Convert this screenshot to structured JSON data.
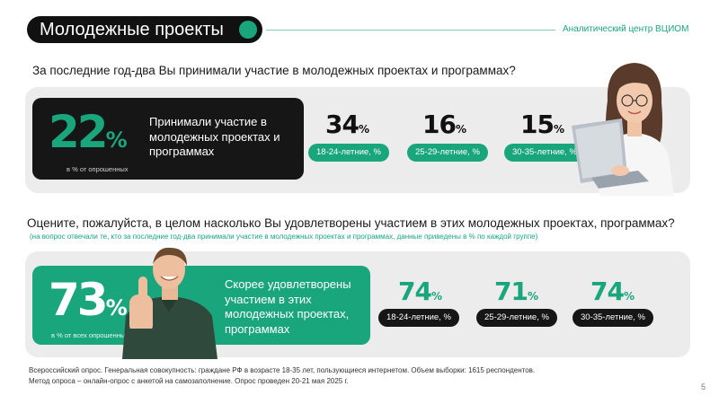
{
  "header": {
    "title": "Молодежные проекты",
    "org": "Аналитический центр ВЦИОМ"
  },
  "section1": {
    "question": "За последние год-два Вы принимали участие в молодежных проектах и программах?",
    "main_value": "22",
    "main_unit": "%",
    "main_desc": "Принимали участие в молодежных проектах и программах",
    "main_sub": "в % от опрошенных",
    "groups": [
      {
        "value": "34",
        "unit": "%",
        "label": "18-24-летние, %"
      },
      {
        "value": "16",
        "unit": "%",
        "label": "25-29-летние, %"
      },
      {
        "value": "15",
        "unit": "%",
        "label": "30-35-летние, %"
      }
    ]
  },
  "section2": {
    "question": "Оцените, пожалуйста, в целом насколько Вы удовлетворены участием в этих молодежных проектах, программах?",
    "note": "(на вопрос отвечали те, кто за последние год-два принимали участие в молодежных проектах и программах, данные приведены в % по каждой группе)",
    "main_value": "73",
    "main_unit": "%",
    "main_desc": "Скорее удовлетворены участием в этих молодежных проектах, программах",
    "main_sub": "в % от всех опрошенных",
    "groups": [
      {
        "value": "74",
        "unit": "%",
        "label": "18-24-летние, %"
      },
      {
        "value": "71",
        "unit": "%",
        "label": "25-29-летние, %"
      },
      {
        "value": "74",
        "unit": "%",
        "label": "30-35-летние, %"
      }
    ]
  },
  "footnote": "Всероссийский опрос. Генеральная совокупность: граждане РФ в возрасте 18-35 лет, пользующиеся интернетом. Объем выборки: 1615 респондентов. Метод опроса – онлайн-опрос с анкетой на самозаполнение. Опрос проведен 20-21 мая 2025 г.",
  "page_number": "5",
  "colors": {
    "accent": "#1aa67d",
    "dark": "#161616",
    "panel": "#ececec"
  }
}
